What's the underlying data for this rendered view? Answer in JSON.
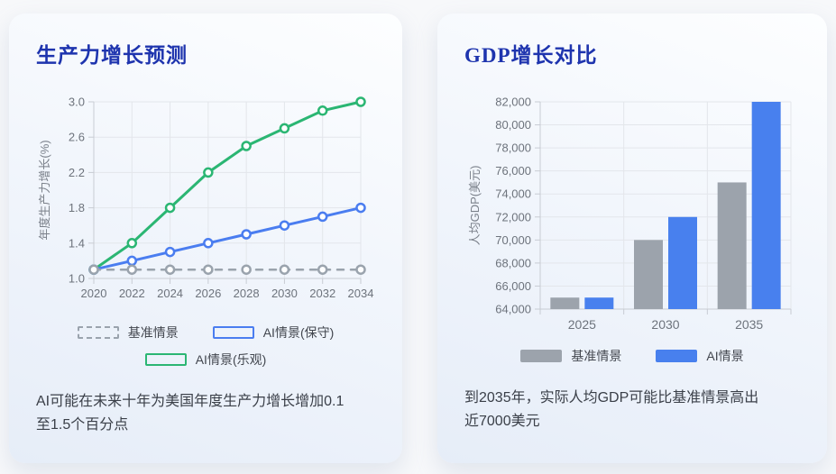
{
  "page_background": "#f7f8fa",
  "cards": [
    {
      "title": "生产力增长预测",
      "caption": "AI可能在未来十年为美国年度生产力增长增加0.1至1.5个百分点"
    },
    {
      "title": "GDP增长对比",
      "caption": "到2035年，实际人均GDP可能比基准情景高出近7000美元"
    }
  ],
  "chart_data": [
    {
      "type": "line",
      "title": "生产力增长预测",
      "x": [
        2020,
        2022,
        2024,
        2026,
        2028,
        2030,
        2032,
        2034
      ],
      "series": [
        {
          "name": "基准情景",
          "values": [
            1.1,
            1.1,
            1.1,
            1.1,
            1.1,
            1.1,
            1.1,
            1.1
          ],
          "color": "#9aa3ad",
          "dashed": true,
          "swatch": "dash"
        },
        {
          "name": "AI情景(保守)",
          "values": [
            1.1,
            1.2,
            1.3,
            1.4,
            1.5,
            1.6,
            1.7,
            1.8
          ],
          "color": "#4a7df0",
          "dashed": false,
          "swatch": "outline"
        },
        {
          "name": "AI情景(乐观)",
          "values": [
            1.1,
            1.4,
            1.8,
            2.2,
            2.5,
            2.7,
            2.9,
            3.0
          ],
          "color": "#2bb673",
          "dashed": false,
          "swatch": "outline"
        }
      ],
      "xlabel": "",
      "ylabel": "年度生产力增长(%)",
      "ylim": [
        1.0,
        3.0
      ],
      "yticks": [
        1.0,
        1.4,
        1.8,
        2.2,
        2.6,
        3.0
      ],
      "grid": true,
      "legend_position": "bottom"
    },
    {
      "type": "bar",
      "title": "GDP增长对比",
      "categories": [
        "2025",
        "2030",
        "2035"
      ],
      "series": [
        {
          "name": "基准情景",
          "values": [
            65000,
            70000,
            75000
          ],
          "color": "#9ca3ac",
          "swatch": "fill"
        },
        {
          "name": "AI情景",
          "values": [
            65000,
            72000,
            82000
          ],
          "color": "#4880ee",
          "swatch": "fill"
        }
      ],
      "xlabel": "",
      "ylabel": "人均GDP(美元)",
      "ylim": [
        64000,
        82000
      ],
      "ytick_step": 2000,
      "grid": true,
      "legend_position": "bottom"
    }
  ]
}
